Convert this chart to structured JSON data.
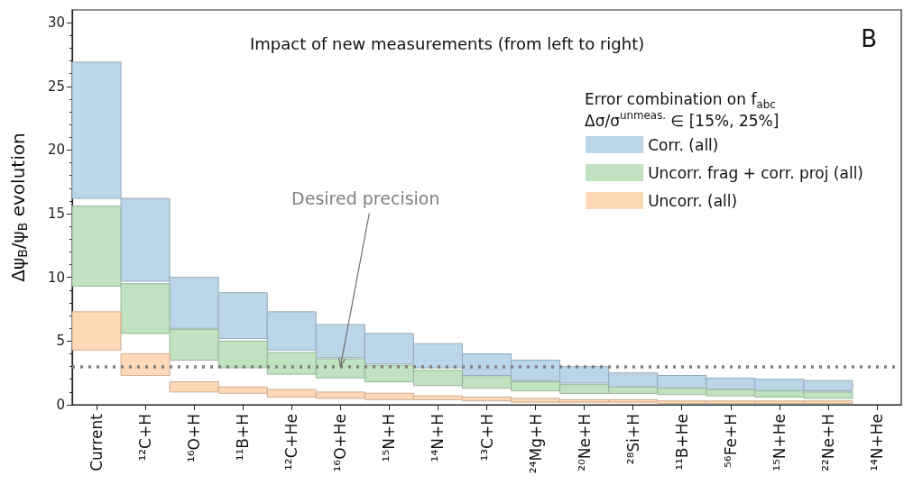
{
  "chart_data": {
    "type": "bar",
    "title": "Impact of new measurements (from left to right)",
    "ylabel": "Δψ$_{B}$/ψ$_{B}$ evolution",
    "legend_title": "Error combination on f$_{abc}$\nΔσ/σ$^{unmeas.}$ ∈ [15%, 25%]",
    "annotations": [
      "B",
      {
        "text": "Desired precision",
        "x": "¹⁶O+He",
        "y": 3
      }
    ],
    "categories": [
      "Current",
      "¹²C+H",
      "¹⁶O+H",
      "¹¹B+H",
      "¹²C+He",
      "¹⁶O+He",
      "¹⁵N+H",
      "¹⁴N+H",
      "¹³C+H",
      "²⁴Mg+H",
      "²⁰Ne+H",
      "²⁸Si+H",
      "¹¹B+He",
      "⁵⁶Fe+H",
      "¹⁵N+He",
      "²²Ne+H",
      "¹⁴N+He"
    ],
    "series": [
      {
        "name": "Corr. (all)",
        "color": "#bbd6e8",
        "base": [
          16.2,
          9.7,
          6.0,
          5.2,
          4.3,
          3.7,
          3.2,
          2.9,
          2.3,
          1.9,
          1.7,
          1.4,
          1.3,
          1.2,
          1.1,
          1.1,
          null
        ],
        "values": [
          10.7,
          6.5,
          4.0,
          3.6,
          3.0,
          2.6,
          2.4,
          1.9,
          1.7,
          1.6,
          1.3,
          1.1,
          1.0,
          0.9,
          0.9,
          0.8,
          null
        ]
      },
      {
        "name": "Uncorr. frag + corr. proj (all)",
        "color": "#c0e2c0",
        "base": [
          9.3,
          5.6,
          3.5,
          2.9,
          2.4,
          2.1,
          1.8,
          1.5,
          1.3,
          1.1,
          0.9,
          0.9,
          0.8,
          0.7,
          0.6,
          0.5,
          null
        ],
        "values": [
          6.3,
          3.9,
          2.4,
          2.1,
          1.7,
          1.5,
          1.3,
          1.2,
          0.9,
          0.7,
          0.7,
          0.5,
          0.5,
          0.5,
          0.5,
          0.5,
          null
        ]
      },
      {
        "name": "Uncorr. (all)",
        "color": "#ffd8b7",
        "base": [
          4.3,
          2.3,
          1.0,
          0.9,
          0.6,
          0.5,
          0.4,
          0.4,
          0.3,
          0.2,
          0.2,
          0.2,
          0.1,
          0.1,
          0.1,
          0.1,
          null
        ],
        "values": [
          3.0,
          1.7,
          0.8,
          0.5,
          0.6,
          0.5,
          0.5,
          0.3,
          0.3,
          0.3,
          0.2,
          0.2,
          0.2,
          0.2,
          0.2,
          0.2,
          null
        ]
      }
    ],
    "ylim": [
      0,
      31
    ],
    "yticks": [
      0,
      5,
      10,
      15,
      20,
      25,
      30
    ],
    "grid": false,
    "legend": "top right",
    "ref_lines": [
      {
        "axis": "y",
        "value": 3,
        "color": "#808080",
        "line_style": "dotted"
      }
    ]
  }
}
